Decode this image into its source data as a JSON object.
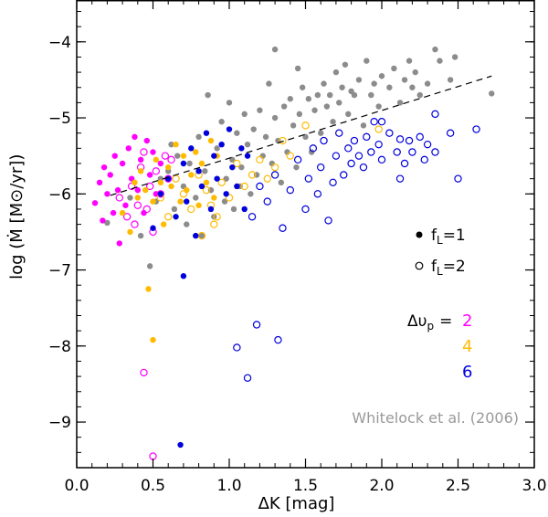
{
  "chart_data": {
    "type": "scatter",
    "title": "",
    "xlabel": "ΔK   [mag]",
    "ylabel": "log (Ṁ [M⊙/yr])",
    "xlim": [
      0.0,
      3.0
    ],
    "ylim": [
      -9.6,
      -3.45
    ],
    "x_ticks": [
      0.0,
      0.5,
      1.0,
      1.5,
      2.0,
      2.5,
      3.0
    ],
    "x_tick_labels": [
      "0.0",
      "0.5",
      "1.0",
      "1.5",
      "2.0",
      "2.5",
      "3.0"
    ],
    "y_ticks": [
      -9,
      -8,
      -7,
      -6,
      -5,
      -4
    ],
    "y_tick_labels": [
      "−9",
      "−8",
      "−7",
      "−6",
      "−5",
      "−4"
    ],
    "grid": false,
    "fit_line": {
      "style": "dashed",
      "color": "#000000",
      "x": [
        0.22,
        2.72
      ],
      "y": [
        -6.02,
        -4.45
      ]
    },
    "legend": {
      "filled_label": "f",
      "filled_sub": "L",
      "filled_value": "=1",
      "open_label": "f",
      "open_sub": "L",
      "open_value": "=2",
      "delta_label": "Δυ",
      "delta_sub": "p",
      "delta_eq": "=",
      "placement": "right"
    },
    "groups": [
      {
        "label": "2",
        "color": "#ff00ff"
      },
      {
        "label": "4",
        "color": "#ffbb00"
      },
      {
        "label": "6",
        "color": "#0000dd"
      }
    ],
    "annotation": {
      "text": "Whitelock et al. (2006)",
      "color": "#999999"
    },
    "series": [
      {
        "name": "gray filled",
        "color": "#8c8c8c",
        "filled": true,
        "points": [
          [
            0.48,
            -6.95
          ],
          [
            0.52,
            -6.1
          ],
          [
            0.55,
            -5.8
          ],
          [
            0.6,
            -5.7
          ],
          [
            0.64,
            -6.2
          ],
          [
            0.66,
            -5.5
          ],
          [
            0.7,
            -5.9
          ],
          [
            0.72,
            -6.4
          ],
          [
            0.74,
            -5.6
          ],
          [
            0.78,
            -6.05
          ],
          [
            0.8,
            -5.25
          ],
          [
            0.82,
            -6.55
          ],
          [
            0.84,
            -5.7
          ],
          [
            0.86,
            -4.7
          ],
          [
            0.88,
            -5.95
          ],
          [
            0.9,
            -6.3
          ],
          [
            0.92,
            -5.4
          ],
          [
            0.95,
            -5.05
          ],
          [
            0.97,
            -6.1
          ],
          [
            0.98,
            -5.8
          ],
          [
            1.0,
            -4.8
          ],
          [
            1.02,
            -5.55
          ],
          [
            1.03,
            -6.2
          ],
          [
            1.05,
            -5.2
          ],
          [
            1.07,
            -5.9
          ],
          [
            1.08,
            -5.65
          ],
          [
            1.1,
            -4.95
          ],
          [
            1.12,
            -5.35
          ],
          [
            1.14,
            -6.0
          ],
          [
            1.16,
            -5.15
          ],
          [
            1.18,
            -5.75
          ],
          [
            1.2,
            -4.9
          ],
          [
            1.22,
            -5.5
          ],
          [
            1.24,
            -5.25
          ],
          [
            1.26,
            -4.55
          ],
          [
            1.28,
            -5.6
          ],
          [
            1.3,
            -5.0
          ],
          [
            1.3,
            -4.1
          ],
          [
            1.32,
            -5.3
          ],
          [
            1.34,
            -5.85
          ],
          [
            1.36,
            -4.85
          ],
          [
            1.38,
            -5.45
          ],
          [
            1.4,
            -4.75
          ],
          [
            1.42,
            -5.1
          ],
          [
            1.44,
            -5.65
          ],
          [
            1.46,
            -4.95
          ],
          [
            1.48,
            -4.6
          ],
          [
            1.5,
            -5.25
          ],
          [
            1.52,
            -4.75
          ],
          [
            1.54,
            -5.45
          ],
          [
            1.56,
            -4.9
          ],
          [
            1.58,
            -4.7
          ],
          [
            1.6,
            -5.2
          ],
          [
            1.62,
            -4.55
          ],
          [
            1.64,
            -4.85
          ],
          [
            1.66,
            -4.7
          ],
          [
            1.68,
            -5.05
          ],
          [
            1.7,
            -4.4
          ],
          [
            1.72,
            -4.8
          ],
          [
            1.74,
            -4.6
          ],
          [
            1.76,
            -4.3
          ],
          [
            1.78,
            -4.95
          ],
          [
            1.8,
            -4.65
          ],
          [
            1.82,
            -4.7
          ],
          [
            1.85,
            -4.5
          ],
          [
            1.88,
            -5.1
          ],
          [
            1.9,
            -4.25
          ],
          [
            1.93,
            -4.7
          ],
          [
            1.95,
            -4.55
          ],
          [
            1.98,
            -4.85
          ],
          [
            2.0,
            -4.45
          ],
          [
            2.05,
            -4.6
          ],
          [
            2.08,
            -4.35
          ],
          [
            2.12,
            -4.8
          ],
          [
            2.15,
            -4.5
          ],
          [
            2.18,
            -4.25
          ],
          [
            2.2,
            -4.6
          ],
          [
            2.22,
            -4.4
          ],
          [
            2.25,
            -4.7
          ],
          [
            2.3,
            -4.55
          ],
          [
            2.35,
            -4.1
          ],
          [
            2.38,
            -4.25
          ],
          [
            2.45,
            -4.5
          ],
          [
            2.48,
            -4.2
          ],
          [
            2.72,
            -4.68
          ],
          [
            0.2,
            -6.38
          ],
          [
            0.35,
            -6.05
          ],
          [
            0.42,
            -6.55
          ],
          [
            0.62,
            -5.35
          ],
          [
            1.45,
            -4.35
          ]
        ]
      },
      {
        "name": "magenta filled",
        "color": "#ff00ff",
        "filled": true,
        "points": [
          [
            0.12,
            -6.12
          ],
          [
            0.15,
            -5.85
          ],
          [
            0.17,
            -6.35
          ],
          [
            0.18,
            -5.65
          ],
          [
            0.2,
            -6.0
          ],
          [
            0.22,
            -5.75
          ],
          [
            0.24,
            -6.25
          ],
          [
            0.25,
            -5.5
          ],
          [
            0.27,
            -5.95
          ],
          [
            0.28,
            -6.65
          ],
          [
            0.3,
            -5.6
          ],
          [
            0.32,
            -6.15
          ],
          [
            0.34,
            -5.4
          ],
          [
            0.36,
            -5.8
          ],
          [
            0.38,
            -5.25
          ],
          [
            0.4,
            -5.95
          ],
          [
            0.42,
            -5.55
          ],
          [
            0.44,
            -6.25
          ],
          [
            0.46,
            -5.3
          ],
          [
            0.48,
            -5.75
          ],
          [
            0.5,
            -5.45
          ],
          [
            0.52,
            -6.0
          ],
          [
            0.55,
            -5.6
          ]
        ]
      },
      {
        "name": "magenta open",
        "color": "#ff00ff",
        "filled": false,
        "points": [
          [
            0.28,
            -6.05
          ],
          [
            0.33,
            -6.3
          ],
          [
            0.36,
            -5.9
          ],
          [
            0.38,
            -6.4
          ],
          [
            0.4,
            -6.15
          ],
          [
            0.42,
            -5.65
          ],
          [
            0.44,
            -5.45
          ],
          [
            0.44,
            -8.35
          ],
          [
            0.46,
            -6.2
          ],
          [
            0.48,
            -5.9
          ],
          [
            0.5,
            -6.5
          ],
          [
            0.52,
            -5.7
          ],
          [
            0.55,
            -6.0
          ],
          [
            0.58,
            -5.5
          ],
          [
            0.6,
            -5.8
          ],
          [
            0.5,
            -9.45
          ],
          [
            0.62,
            -5.55
          ]
        ]
      },
      {
        "name": "orange filled",
        "color": "#ffbb00",
        "filled": true,
        "points": [
          [
            0.3,
            -6.25
          ],
          [
            0.35,
            -6.5
          ],
          [
            0.38,
            -5.85
          ],
          [
            0.4,
            -6.05
          ],
          [
            0.42,
            -5.7
          ],
          [
            0.45,
            -5.95
          ],
          [
            0.47,
            -7.25
          ],
          [
            0.5,
            -7.92
          ],
          [
            0.5,
            -6.1
          ],
          [
            0.52,
            -5.55
          ],
          [
            0.55,
            -5.85
          ],
          [
            0.57,
            -6.4
          ],
          [
            0.6,
            -5.65
          ],
          [
            0.62,
            -5.9
          ],
          [
            0.65,
            -5.35
          ],
          [
            0.68,
            -6.1
          ],
          [
            0.7,
            -5.5
          ],
          [
            0.72,
            -5.95
          ],
          [
            0.75,
            -5.75
          ],
          [
            0.78,
            -5.45
          ],
          [
            0.8,
            -6.15
          ],
          [
            0.82,
            -5.6
          ],
          [
            0.85,
            -5.85
          ],
          [
            0.88,
            -5.3
          ],
          [
            0.9,
            -6.05
          ],
          [
            0.92,
            -5.5
          ]
        ]
      },
      {
        "name": "orange open",
        "color": "#ffbb00",
        "filled": false,
        "points": [
          [
            0.55,
            -6.05
          ],
          [
            0.6,
            -6.3
          ],
          [
            0.65,
            -5.8
          ],
          [
            0.7,
            -6.0
          ],
          [
            0.75,
            -6.2
          ],
          [
            0.8,
            -5.75
          ],
          [
            0.82,
            -6.55
          ],
          [
            0.85,
            -5.95
          ],
          [
            0.88,
            -6.15
          ],
          [
            0.9,
            -6.4
          ],
          [
            0.92,
            -6.3
          ],
          [
            0.95,
            -5.85
          ],
          [
            1.0,
            -6.05
          ],
          [
            1.05,
            -5.6
          ],
          [
            1.1,
            -5.9
          ],
          [
            1.15,
            -5.75
          ],
          [
            1.2,
            -5.55
          ],
          [
            1.25,
            -5.8
          ],
          [
            1.3,
            -5.65
          ],
          [
            1.35,
            -5.3
          ],
          [
            1.4,
            -5.5
          ],
          [
            1.5,
            -5.1
          ],
          [
            1.98,
            -5.15
          ]
        ]
      },
      {
        "name": "blue filled",
        "color": "#0000dd",
        "filled": true,
        "points": [
          [
            0.5,
            -6.45
          ],
          [
            0.55,
            -6.0
          ],
          [
            0.6,
            -5.8
          ],
          [
            0.65,
            -6.3
          ],
          [
            0.68,
            -9.3
          ],
          [
            0.7,
            -7.08
          ],
          [
            0.7,
            -5.6
          ],
          [
            0.72,
            -6.1
          ],
          [
            0.75,
            -5.4
          ],
          [
            0.78,
            -6.55
          ],
          [
            0.8,
            -5.7
          ],
          [
            0.82,
            -5.9
          ],
          [
            0.85,
            -5.2
          ],
          [
            0.88,
            -6.2
          ],
          [
            0.9,
            -5.5
          ],
          [
            0.92,
            -5.8
          ],
          [
            0.95,
            -5.35
          ],
          [
            0.98,
            -6.0
          ],
          [
            1.0,
            -5.15
          ],
          [
            1.02,
            -5.65
          ],
          [
            1.05,
            -5.9
          ],
          [
            1.08,
            -5.4
          ],
          [
            1.1,
            -6.2
          ],
          [
            1.12,
            -5.5
          ]
        ]
      },
      {
        "name": "blue open",
        "color": "#0000dd",
        "filled": false,
        "points": [
          [
            1.05,
            -8.02
          ],
          [
            1.12,
            -8.42
          ],
          [
            1.18,
            -7.72
          ],
          [
            1.32,
            -7.92
          ],
          [
            1.15,
            -6.3
          ],
          [
            1.2,
            -5.9
          ],
          [
            1.25,
            -6.1
          ],
          [
            1.3,
            -5.75
          ],
          [
            1.35,
            -6.45
          ],
          [
            1.4,
            -5.95
          ],
          [
            1.45,
            -5.55
          ],
          [
            1.5,
            -6.2
          ],
          [
            1.52,
            -5.8
          ],
          [
            1.55,
            -5.4
          ],
          [
            1.58,
            -6.0
          ],
          [
            1.6,
            -5.65
          ],
          [
            1.62,
            -5.3
          ],
          [
            1.65,
            -6.35
          ],
          [
            1.68,
            -5.85
          ],
          [
            1.7,
            -5.5
          ],
          [
            1.72,
            -5.2
          ],
          [
            1.75,
            -5.75
          ],
          [
            1.78,
            -5.4
          ],
          [
            1.8,
            -5.6
          ],
          [
            1.82,
            -5.3
          ],
          [
            1.85,
            -5.5
          ],
          [
            1.88,
            -5.65
          ],
          [
            1.9,
            -5.25
          ],
          [
            1.93,
            -5.45
          ],
          [
            1.95,
            -5.05
          ],
          [
            1.98,
            -5.35
          ],
          [
            2.0,
            -5.55
          ],
          [
            2.05,
            -5.2
          ],
          [
            2.1,
            -5.45
          ],
          [
            2.12,
            -5.28
          ],
          [
            2.15,
            -5.6
          ],
          [
            2.18,
            -5.3
          ],
          [
            2.2,
            -5.45
          ],
          [
            2.25,
            -5.25
          ],
          [
            2.28,
            -5.55
          ],
          [
            2.3,
            -5.35
          ],
          [
            2.35,
            -4.95
          ],
          [
            2.45,
            -5.2
          ],
          [
            2.5,
            -5.8
          ],
          [
            2.62,
            -5.15
          ],
          [
            2.12,
            -5.8
          ],
          [
            2.35,
            -5.45
          ],
          [
            2.0,
            -5.05
          ]
        ]
      }
    ]
  }
}
